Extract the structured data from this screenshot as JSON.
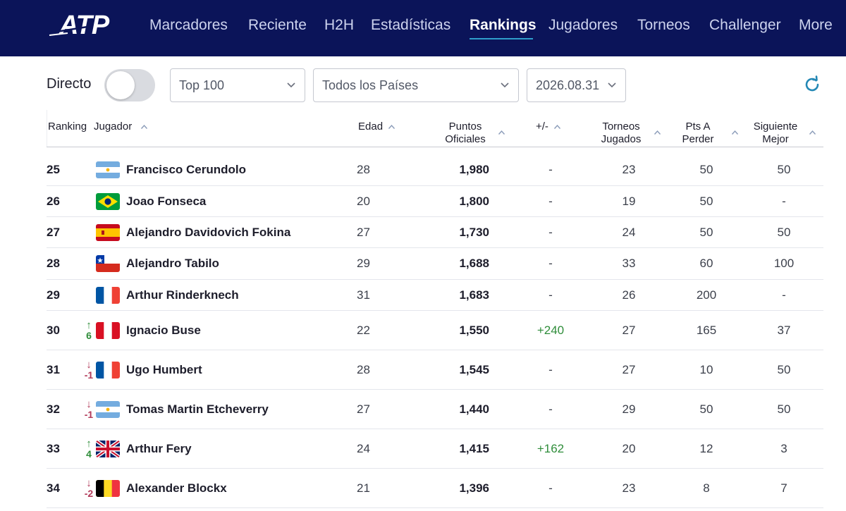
{
  "nav": {
    "brand": "ATP",
    "items": [
      {
        "label": "Marcadores"
      },
      {
        "label": "Reciente"
      },
      {
        "label": "H2H"
      },
      {
        "label": "Estadísticas"
      },
      {
        "label": "Rankings",
        "active": true
      },
      {
        "label": "Jugadores"
      },
      {
        "label": "Torneos"
      },
      {
        "label": "Challenger"
      },
      {
        "label": "More"
      }
    ],
    "background_color": "#0b1459",
    "active_underline_color": "#2f9ecb"
  },
  "filters": {
    "directo_label": "Directo",
    "directo_on": false,
    "range_value": "Top 100",
    "country_value": "Todos los Países",
    "date_value": "2026.08.31"
  },
  "table": {
    "headers": {
      "ranking": "Ranking",
      "jugador": "Jugador",
      "edad": "Edad",
      "puntos_1": "Puntos",
      "puntos_2": "Oficiales",
      "plusminus": "+/-",
      "torneos_1": "Torneos",
      "torneos_2": "Jugados",
      "pts_1": "Pts A",
      "pts_2": "Perder",
      "sig_1": "Siguiente",
      "sig_2": "Mejor"
    },
    "rows": [
      {
        "rank": "25",
        "move": "",
        "dir": "",
        "flag": "ar",
        "name": "Francisco Cerundolo",
        "age": "28",
        "points": "1,980",
        "pm": "-",
        "tournaments": "23",
        "pts_to_lose": "50",
        "next_best": "50"
      },
      {
        "rank": "26",
        "move": "",
        "dir": "",
        "flag": "br",
        "name": "Joao Fonseca",
        "age": "20",
        "points": "1,800",
        "pm": "-",
        "tournaments": "19",
        "pts_to_lose": "50",
        "next_best": "-"
      },
      {
        "rank": "27",
        "move": "",
        "dir": "",
        "flag": "es",
        "name": "Alejandro Davidovich Fokina",
        "age": "27",
        "points": "1,730",
        "pm": "-",
        "tournaments": "24",
        "pts_to_lose": "50",
        "next_best": "50"
      },
      {
        "rank": "28",
        "move": "",
        "dir": "",
        "flag": "cl",
        "name": "Alejandro Tabilo",
        "age": "29",
        "points": "1,688",
        "pm": "-",
        "tournaments": "33",
        "pts_to_lose": "60",
        "next_best": "100"
      },
      {
        "rank": "29",
        "move": "",
        "dir": "",
        "flag": "fr",
        "name": "Arthur Rinderknech",
        "age": "31",
        "points": "1,683",
        "pm": "-",
        "tournaments": "26",
        "pts_to_lose": "200",
        "next_best": "-"
      },
      {
        "rank": "30",
        "move": "6",
        "dir": "up",
        "flag": "pe",
        "name": "Ignacio Buse",
        "age": "22",
        "points": "1,550",
        "pm": "+240",
        "tournaments": "27",
        "pts_to_lose": "165",
        "next_best": "37"
      },
      {
        "rank": "31",
        "move": "-1",
        "dir": "down",
        "flag": "fr",
        "name": "Ugo Humbert",
        "age": "28",
        "points": "1,545",
        "pm": "-",
        "tournaments": "27",
        "pts_to_lose": "10",
        "next_best": "50"
      },
      {
        "rank": "32",
        "move": "-1",
        "dir": "down",
        "flag": "ar",
        "name": "Tomas Martin Etcheverry",
        "age": "27",
        "points": "1,440",
        "pm": "-",
        "tournaments": "29",
        "pts_to_lose": "50",
        "next_best": "50"
      },
      {
        "rank": "33",
        "move": "4",
        "dir": "up",
        "flag": "gb",
        "name": "Arthur Fery",
        "age": "24",
        "points": "1,415",
        "pm": "+162",
        "tournaments": "20",
        "pts_to_lose": "12",
        "next_best": "3"
      },
      {
        "rank": "34",
        "move": "-2",
        "dir": "down",
        "flag": "be",
        "name": "Alexander Blockx",
        "age": "21",
        "points": "1,396",
        "pm": "-",
        "tournaments": "23",
        "pts_to_lose": "8",
        "next_best": "7"
      }
    ]
  }
}
